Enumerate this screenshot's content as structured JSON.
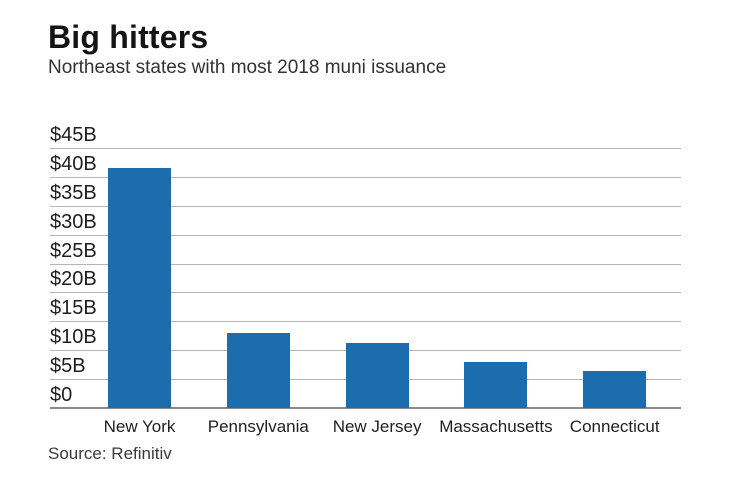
{
  "header": {
    "title": "Big hitters",
    "subtitle": "Northeast states with most 2018 muni issuance"
  },
  "footer": {
    "source": "Source: Refinitiv"
  },
  "colors": {
    "bar": "#1b6dad",
    "gridline": "#b5b5b5",
    "baseline": "#8a8a8a",
    "title_text": "#141414",
    "subtitle_text": "#323232",
    "tick_text": "#1e1e1e",
    "background": "#ffffff"
  },
  "chart_data": {
    "type": "bar",
    "title": "Big hitters",
    "subtitle": "Northeast states with most 2018 muni issuance",
    "categories": [
      "New York",
      "Pennsylvania",
      "New Jersey",
      "Massachusetts",
      "Connecticut"
    ],
    "values": [
      41.6,
      13.0,
      11.3,
      8.0,
      6.4
    ],
    "unit": "billions USD",
    "xlabel": "",
    "ylabel": "",
    "ylim": [
      0,
      45
    ],
    "ytick_step": 5,
    "ytick_labels": [
      "$0",
      "$5B",
      "$10B",
      "$15B",
      "$20B",
      "$25B",
      "$30B",
      "$35B",
      "$40B",
      "$45B"
    ],
    "grid": true,
    "legend": false,
    "source": "Source: Refinitiv",
    "bar_color": "#1b6dad"
  }
}
